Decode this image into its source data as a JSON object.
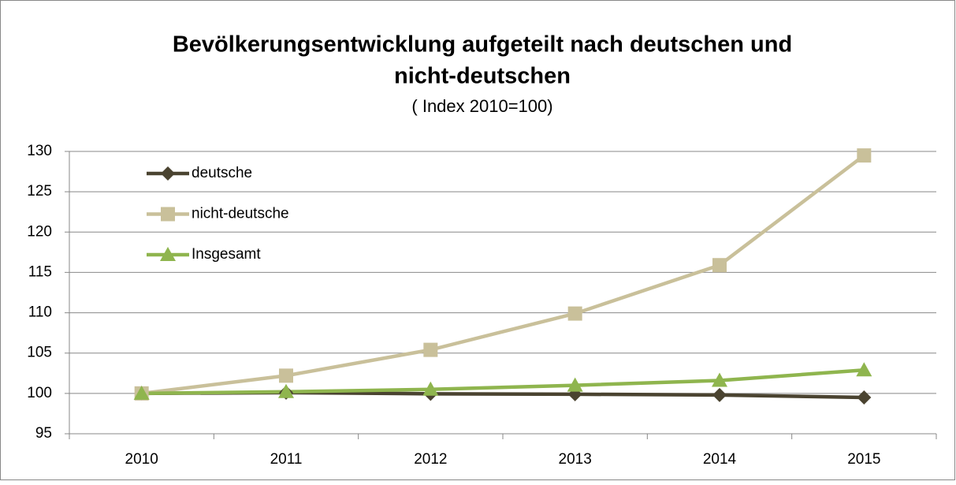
{
  "chart_data": {
    "type": "line",
    "title": [
      "Bevölkerungsentwicklung aufgeteilt nach deutschen und",
      "nicht-deutschen"
    ],
    "subtitle": "( Index 2010=100)",
    "categories": [
      "2010",
      "2011",
      "2012",
      "2013",
      "2014",
      "2015"
    ],
    "series": [
      {
        "name": "deutsche",
        "color": "#4a4330",
        "marker": "diamond",
        "values": [
          100,
          100.1,
          99.95,
          99.9,
          99.8,
          99.5
        ]
      },
      {
        "name": "nicht-deutsche",
        "color": "#c9c09a",
        "marker": "square",
        "values": [
          100,
          102.2,
          105.4,
          109.9,
          115.9,
          129.5
        ]
      },
      {
        "name": "Insgesamt",
        "color": "#8fb54e",
        "marker": "triangle",
        "values": [
          100,
          100.2,
          100.5,
          101.0,
          101.6,
          102.9
        ]
      }
    ],
    "ylim": [
      95,
      130
    ],
    "yticks": [
      95,
      100,
      105,
      110,
      115,
      120,
      125,
      130
    ],
    "grid": true,
    "legend": "top-left"
  }
}
